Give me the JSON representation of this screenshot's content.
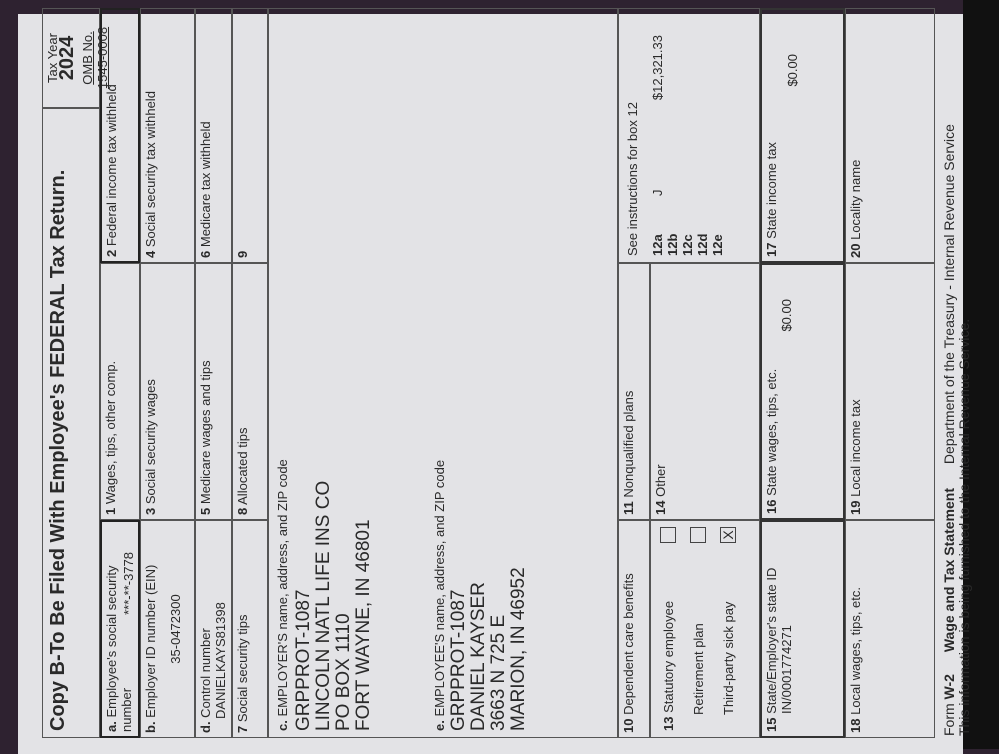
{
  "form": {
    "title": "Copy B-To Be Filed With Employee's FEDERAL Tax Return.",
    "tax_year_label": "Tax Year",
    "tax_year": "2024",
    "omb": "OMB No. 1545-0008",
    "box_a": {
      "letter": "a.",
      "label": "Employee's social security number",
      "value": "***-**-3778"
    },
    "box_b": {
      "letter": "b.",
      "label": "Employer ID number (EIN)",
      "value": "35-0472300"
    },
    "box_d": {
      "letter": "d.",
      "label": "Control number",
      "value": "DANIELKAYS81398"
    },
    "box_1": {
      "num": "1",
      "label": "Wages, tips, other comp."
    },
    "box_2": {
      "num": "2",
      "label": "Federal income tax withheld"
    },
    "box_3": {
      "num": "3",
      "label": "Social security wages"
    },
    "box_4": {
      "num": "4",
      "label": "Social security tax withheld"
    },
    "box_5": {
      "num": "5",
      "label": "Medicare wages and tips"
    },
    "box_6": {
      "num": "6",
      "label": "Medicare tax withheld"
    },
    "box_7": {
      "num": "7",
      "label": "Social security tips"
    },
    "box_8": {
      "num": "8",
      "label": "Allocated tips"
    },
    "box_9": {
      "num": "9"
    },
    "box_c": {
      "letter": "c.",
      "label": "EMPLOYER'S name, address, and ZIP code",
      "lines": [
        "GRPPROT-1087",
        "LINCOLN NATL LIFE INS CO",
        "PO BOX 1110",
        "FORT WAYNE, IN 46801"
      ]
    },
    "box_e": {
      "letter": "e.",
      "label": "EMPLOYEE'S name, address, and ZIP code",
      "lines": [
        "GRPPROT-1087",
        "DANIEL KAYSER",
        "3663 N 725 E",
        "MARION, IN 46952"
      ]
    },
    "box_10": {
      "num": "10",
      "label": "Dependent care benefits"
    },
    "box_11": {
      "num": "11",
      "label": "Nonqualified plans"
    },
    "box_12": {
      "label": "See instructions for box 12",
      "codes": [
        "12a",
        "12b",
        "12c",
        "12d",
        "12e"
      ],
      "code_12a": "J",
      "amount_12a": "$12,321.33"
    },
    "box_13": {
      "num": "13",
      "items": [
        {
          "label": "Statutory employee",
          "checked": false,
          "mark": ""
        },
        {
          "label": "Retirement plan",
          "checked": false,
          "mark": ""
        },
        {
          "label": "Third-party sick pay",
          "checked": true,
          "mark": "X"
        }
      ]
    },
    "box_14": {
      "num": "14",
      "label": "Other"
    },
    "box_15": {
      "num": "15",
      "label": "State/Employer's state ID",
      "value": "IN/0001774271"
    },
    "box_16": {
      "num": "16",
      "label": "State wages, tips, etc.",
      "value": "$0.00"
    },
    "box_17": {
      "num": "17",
      "label": "State income tax",
      "value": "$0.00"
    },
    "box_18": {
      "num": "18",
      "label": "Local wages, tips, etc."
    },
    "box_19": {
      "num": "19",
      "label": "Local income tax"
    },
    "box_20": {
      "num": "20",
      "label": "Locality name"
    },
    "footer": {
      "form_label": "Form",
      "form_name": "W-2",
      "statement": "Wage and Tax Statement",
      "dept": "Department of the Treasury - Internal Revenue Service",
      "note": "This information is being furnished to the Internal Revenue Service."
    }
  }
}
